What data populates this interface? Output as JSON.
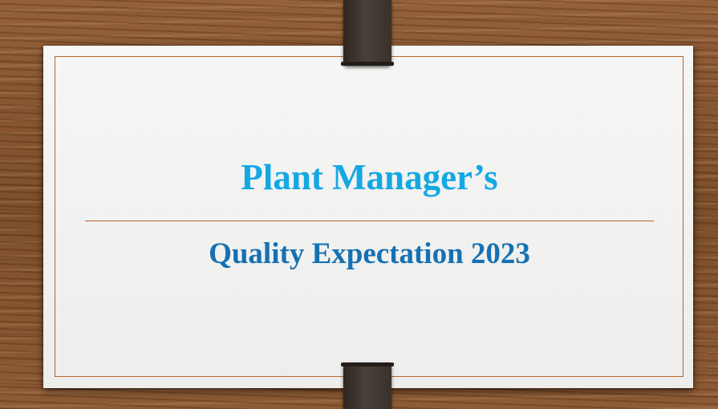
{
  "slide": {
    "title": "Plant Manager’s",
    "subtitle": "Quality Expectation 2023"
  },
  "colors": {
    "title": "#14a8e3",
    "subtitle": "#1571b3",
    "accent_line": "#b5652a",
    "card": "#f6f6f5",
    "wood": "#8a5a32",
    "clip": "#3a312b"
  }
}
